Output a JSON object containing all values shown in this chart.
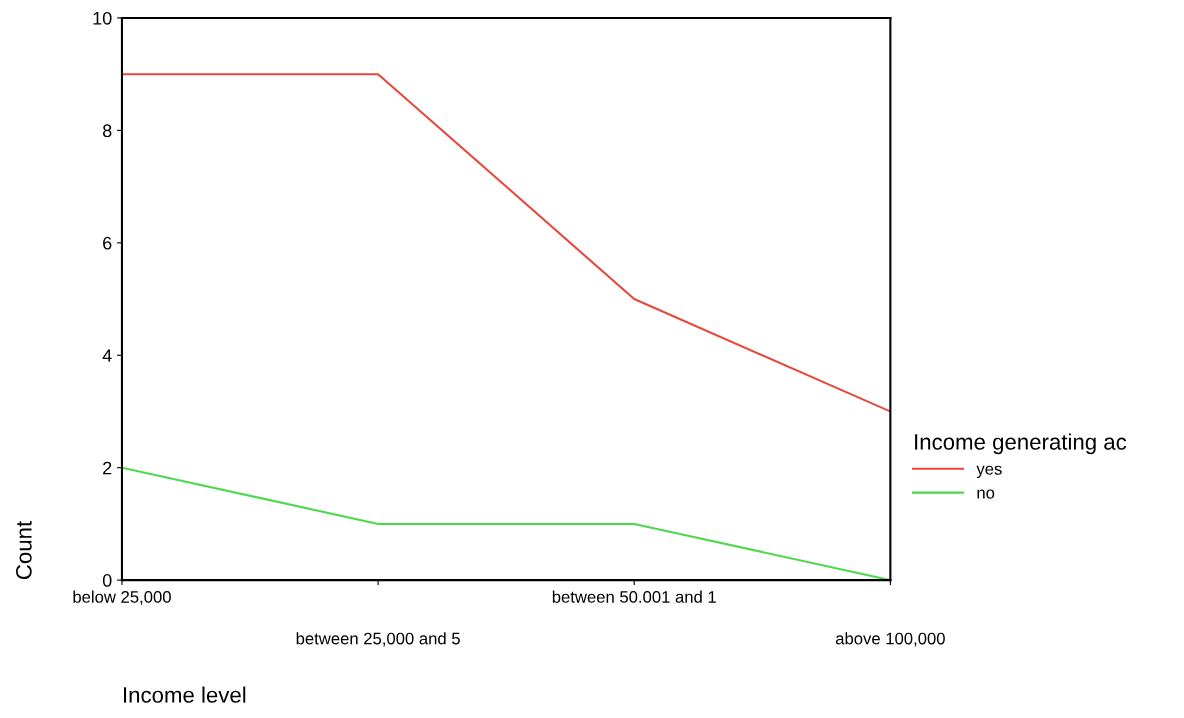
{
  "chart_data": {
    "type": "line",
    "xlabel": "Income level",
    "ylabel": "Count",
    "legend_title": "Income generating ac",
    "categories": [
      "below 25,000",
      "between 25,000 and 5",
      "between 50.001 and 1",
      "above 100,000"
    ],
    "series": [
      {
        "name": "yes",
        "color": "#e8473c",
        "values": [
          9,
          9,
          5,
          3
        ]
      },
      {
        "name": "no",
        "color": "#4cd94c",
        "values": [
          2,
          1,
          1,
          0
        ]
      }
    ],
    "ylim": [
      0,
      10
    ],
    "yticks": [
      0,
      2,
      4,
      6,
      8,
      10
    ],
    "legend": "right",
    "marker": "none",
    "line_style": "solid",
    "grid": false
  }
}
